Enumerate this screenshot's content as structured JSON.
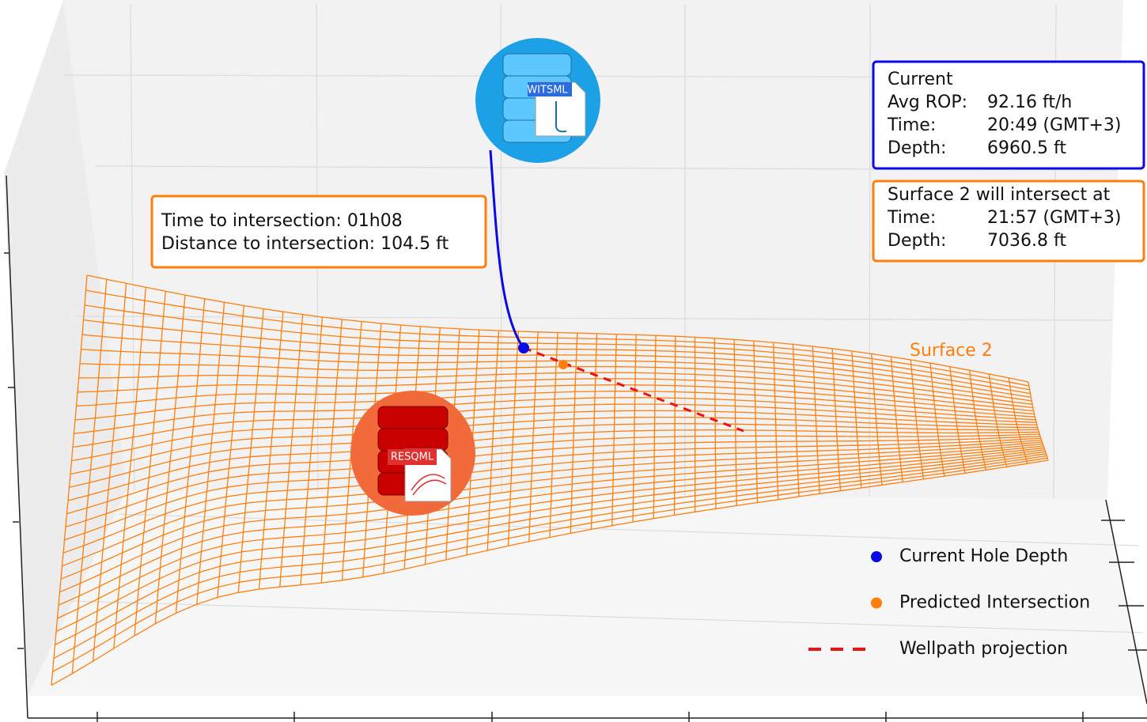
{
  "icons": {
    "top": "WITSML",
    "bottom": "RESQML"
  },
  "callout": {
    "line1": "Time to intersection: 01h08",
    "line2": "Distance to intersection: 104.5 ft"
  },
  "current_box": {
    "title": "Current",
    "rows": [
      [
        "Avg ROP:",
        "92.16 ft/h"
      ],
      [
        "Time:",
        "20:49 (GMT+3)"
      ],
      [
        "Depth:",
        "6960.5 ft"
      ]
    ]
  },
  "intersect_box": {
    "title": "Surface 2 will intersect at",
    "rows": [
      [
        "Time:",
        "21:57 (GMT+3)"
      ],
      [
        "Depth:",
        "7036.8 ft"
      ]
    ]
  },
  "surface_label": "Surface 2",
  "legend": {
    "items": [
      {
        "label": "Current Hole Depth",
        "color": "#0a0ae6",
        "marker": "dot"
      },
      {
        "label": "Predicted Intersection",
        "color": "#ff7f0e",
        "marker": "dot"
      },
      {
        "label": "Wellpath projection",
        "color": "#ee1111",
        "marker": "dash"
      }
    ]
  }
}
